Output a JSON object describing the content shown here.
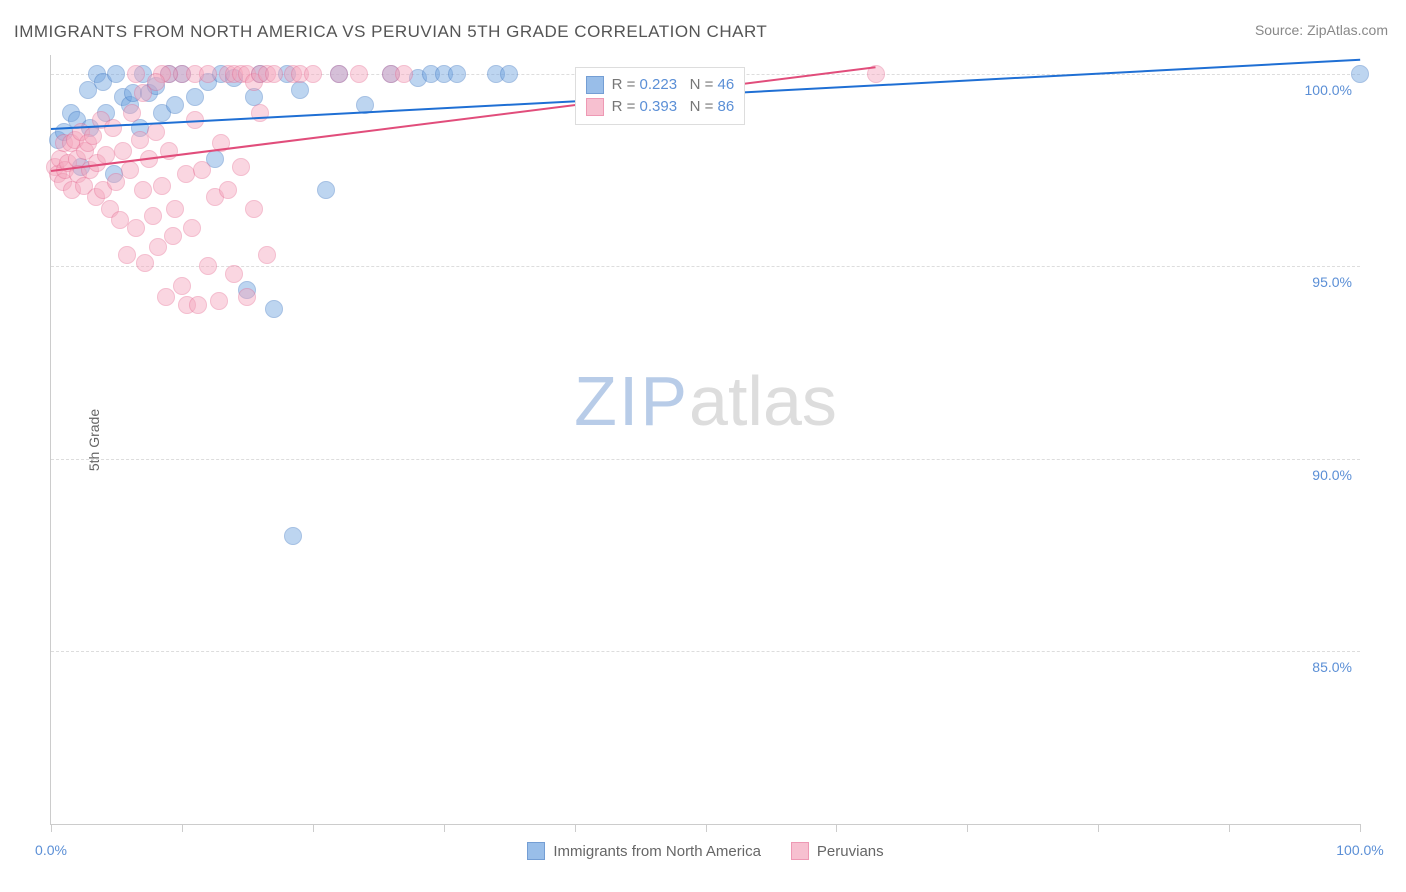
{
  "chart": {
    "type": "scatter",
    "title": "IMMIGRANTS FROM NORTH AMERICA VS PERUVIAN 5TH GRADE CORRELATION CHART",
    "source": "Source: ZipAtlas.com",
    "y_axis_label": "5th Grade",
    "x_axis_label": "",
    "background_color": "#ffffff",
    "grid_color": "#dddddd",
    "axis_color": "#cccccc",
    "tick_label_color": "#5b8fd6",
    "text_color": "#666666",
    "title_color": "#555555",
    "title_fontsize": 17,
    "watermark_zip": "ZIP",
    "watermark_atlas": "atlas",
    "watermark_zip_color": "#b8cce8",
    "watermark_atlas_color": "#dddddd",
    "xlim": [
      0,
      100
    ],
    "ylim": [
      80.5,
      100.5
    ],
    "x_ticks": [
      0,
      10,
      20,
      30,
      40,
      50,
      60,
      70,
      80,
      90,
      100
    ],
    "x_tick_labels": {
      "0": "0.0%",
      "100": "100.0%"
    },
    "y_ticks": [
      85,
      90,
      95,
      100
    ],
    "y_tick_labels": {
      "85": "85.0%",
      "90": "90.0%",
      "95": "95.0%",
      "100": "100.0%"
    },
    "marker_radius": 9,
    "marker_opacity": 0.45,
    "trend_line_width": 2,
    "series": [
      {
        "name": "Immigrants from North America",
        "color_fill": "#6fa3e0",
        "color_stroke": "#3a76c3",
        "trend_color": "#1f6fd4",
        "trend": {
          "x1": 0,
          "y1": 98.6,
          "x2": 100,
          "y2": 100.4
        },
        "stats": {
          "R": "0.223",
          "N": "46"
        },
        "points": [
          [
            0.5,
            98.3
          ],
          [
            1.0,
            98.5
          ],
          [
            1.5,
            99.0
          ],
          [
            2.0,
            98.8
          ],
          [
            2.3,
            97.6
          ],
          [
            2.8,
            99.6
          ],
          [
            3.0,
            98.6
          ],
          [
            3.5,
            100.0
          ],
          [
            4.0,
            99.8
          ],
          [
            4.2,
            99.0
          ],
          [
            4.8,
            97.4
          ],
          [
            5.0,
            100.0
          ],
          [
            5.5,
            99.4
          ],
          [
            6.0,
            99.2
          ],
          [
            6.3,
            99.5
          ],
          [
            6.8,
            98.6
          ],
          [
            7.0,
            100.0
          ],
          [
            7.5,
            99.5
          ],
          [
            8.0,
            99.7
          ],
          [
            8.5,
            99.0
          ],
          [
            9.0,
            100.0
          ],
          [
            9.5,
            99.2
          ],
          [
            10.0,
            100.0
          ],
          [
            11.0,
            99.4
          ],
          [
            12.0,
            99.8
          ],
          [
            12.5,
            97.8
          ],
          [
            13.0,
            100.0
          ],
          [
            14.0,
            99.9
          ],
          [
            15.0,
            94.4
          ],
          [
            15.5,
            99.4
          ],
          [
            16.0,
            100.0
          ],
          [
            17.0,
            93.9
          ],
          [
            18.0,
            100.0
          ],
          [
            19.0,
            99.6
          ],
          [
            21.0,
            97.0
          ],
          [
            22.0,
            100.0
          ],
          [
            24.0,
            99.2
          ],
          [
            26.0,
            100.0
          ],
          [
            28.0,
            99.9
          ],
          [
            29.0,
            100.0
          ],
          [
            30.0,
            100.0
          ],
          [
            31.0,
            100.0
          ],
          [
            34.0,
            100.0
          ],
          [
            35.0,
            100.0
          ],
          [
            18.5,
            88.0
          ],
          [
            100.0,
            100.0
          ]
        ]
      },
      {
        "name": "Peruvians",
        "color_fill": "#f4a6bd",
        "color_stroke": "#e76f95",
        "trend_color": "#e14d7b",
        "trend": {
          "x1": 0,
          "y1": 97.5,
          "x2": 63,
          "y2": 100.2
        },
        "stats": {
          "R": "0.393",
          "N": "86"
        },
        "points": [
          [
            0.3,
            97.6
          ],
          [
            0.5,
            97.4
          ],
          [
            0.7,
            97.8
          ],
          [
            0.9,
            97.2
          ],
          [
            1.0,
            98.2
          ],
          [
            1.1,
            97.5
          ],
          [
            1.3,
            97.7
          ],
          [
            1.5,
            98.2
          ],
          [
            1.6,
            97.0
          ],
          [
            1.8,
            98.3
          ],
          [
            2.0,
            97.8
          ],
          [
            2.1,
            97.4
          ],
          [
            2.3,
            98.5
          ],
          [
            2.5,
            97.1
          ],
          [
            2.6,
            98.0
          ],
          [
            2.8,
            98.2
          ],
          [
            3.0,
            97.5
          ],
          [
            3.2,
            98.4
          ],
          [
            3.4,
            96.8
          ],
          [
            3.5,
            97.7
          ],
          [
            3.8,
            98.8
          ],
          [
            4.0,
            97.0
          ],
          [
            4.2,
            97.9
          ],
          [
            4.5,
            96.5
          ],
          [
            4.7,
            98.6
          ],
          [
            5.0,
            97.2
          ],
          [
            5.3,
            96.2
          ],
          [
            5.5,
            98.0
          ],
          [
            5.8,
            95.3
          ],
          [
            6.0,
            97.5
          ],
          [
            6.2,
            99.0
          ],
          [
            6.5,
            96.0
          ],
          [
            6.8,
            98.3
          ],
          [
            7.0,
            97.0
          ],
          [
            7.2,
            95.1
          ],
          [
            7.5,
            97.8
          ],
          [
            7.8,
            96.3
          ],
          [
            8.0,
            98.5
          ],
          [
            8.2,
            95.5
          ],
          [
            8.5,
            97.1
          ],
          [
            8.8,
            94.2
          ],
          [
            9.0,
            98.0
          ],
          [
            9.3,
            95.8
          ],
          [
            9.5,
            96.5
          ],
          [
            10.0,
            94.5
          ],
          [
            10.3,
            97.4
          ],
          [
            10.4,
            94.0
          ],
          [
            10.8,
            96.0
          ],
          [
            11.0,
            98.8
          ],
          [
            11.2,
            94.0
          ],
          [
            11.5,
            97.5
          ],
          [
            12.0,
            95.0
          ],
          [
            12.5,
            96.8
          ],
          [
            12.8,
            94.1
          ],
          [
            13.0,
            98.2
          ],
          [
            13.5,
            97.0
          ],
          [
            14.0,
            94.8
          ],
          [
            14.5,
            97.6
          ],
          [
            15.0,
            94.2
          ],
          [
            15.5,
            96.5
          ],
          [
            16.0,
            99.0
          ],
          [
            16.5,
            95.3
          ],
          [
            18.5,
            100.0
          ],
          [
            10.0,
            100.0
          ],
          [
            11.0,
            100.0
          ],
          [
            12.0,
            100.0
          ],
          [
            9.0,
            100.0
          ],
          [
            8.5,
            100.0
          ],
          [
            8.0,
            99.8
          ],
          [
            13.5,
            100.0
          ],
          [
            7.0,
            99.5
          ],
          [
            6.5,
            100.0
          ],
          [
            14.0,
            100.0
          ],
          [
            14.5,
            100.0
          ],
          [
            15.0,
            100.0
          ],
          [
            15.5,
            99.8
          ],
          [
            16.0,
            100.0
          ],
          [
            16.5,
            100.0
          ],
          [
            17.0,
            100.0
          ],
          [
            19.0,
            100.0
          ],
          [
            20.0,
            100.0
          ],
          [
            22.0,
            100.0
          ],
          [
            23.5,
            100.0
          ],
          [
            26.0,
            100.0
          ],
          [
            27.0,
            100.0
          ],
          [
            63.0,
            100.0
          ]
        ]
      }
    ],
    "stats_box": {
      "left_pct": 40.0,
      "top_y": 100.2,
      "R_label": "R =",
      "N_label": "N ="
    },
    "bottom_legend": {
      "items": [
        {
          "label": "Immigrants from North America",
          "fill": "#6fa3e0",
          "stroke": "#3a76c3"
        },
        {
          "label": "Peruvians",
          "fill": "#f4a6bd",
          "stroke": "#e76f95"
        }
      ]
    }
  }
}
